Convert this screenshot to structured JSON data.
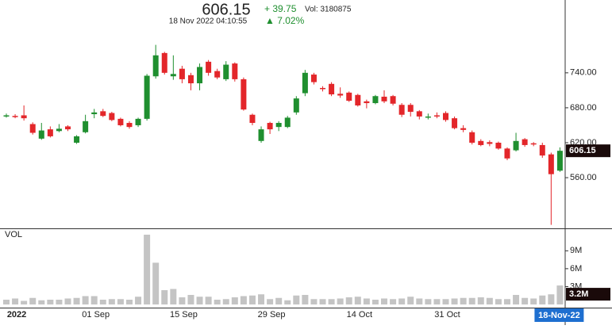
{
  "chart_data": {
    "type": "candlestick",
    "header": {
      "timestamp": "18 Nov 2022 04:10:55",
      "change": "+ 39.75",
      "volume_text": "Vol: 3180875",
      "change_percent": "▲ 7.02%"
    },
    "categories": [
      null,
      "2022",
      null,
      null,
      null,
      null,
      null,
      null,
      null,
      null,
      "01 Sep",
      null,
      null,
      null,
      null,
      null,
      null,
      null,
      null,
      null,
      "15 Sep",
      null,
      null,
      null,
      null,
      null,
      null,
      null,
      null,
      null,
      "29 Sep",
      null,
      null,
      null,
      null,
      null,
      null,
      null,
      null,
      null,
      "14 Oct",
      null,
      null,
      null,
      null,
      null,
      null,
      null,
      null,
      null,
      "31 Oct",
      null,
      null,
      null,
      null,
      null,
      null,
      null,
      null,
      null,
      null,
      null,
      null,
      "18-Nov-22"
    ],
    "open": [
      665,
      666,
      667,
      652,
      627,
      643,
      640,
      648,
      620,
      638,
      669,
      674,
      671,
      661,
      654,
      650,
      661,
      734,
      774,
      734,
      747,
      736,
      722,
      759,
      743,
      729,
      756,
      729,
      668,
      623,
      654,
      647,
      647,
      672,
      705,
      737,
      714,
      721,
      704,
      706,
      702,
      691,
      688,
      699,
      700,
      685,
      685,
      674,
      663,
      667,
      671,
      662,
      645,
      638,
      623,
      621,
      620,
      610,
      607,
      626,
      619,
      616,
      600,
      572
    ],
    "high": [
      670,
      669,
      684,
      655,
      654,
      648,
      652,
      650,
      633,
      668,
      678,
      678,
      673,
      663,
      657,
      663,
      738,
      788,
      776,
      770,
      752,
      740,
      756,
      762,
      747,
      760,
      758,
      732,
      670,
      648,
      656,
      657,
      666,
      700,
      745,
      740,
      717,
      724,
      715,
      708,
      704,
      694,
      702,
      710,
      702,
      688,
      688,
      676,
      670,
      672,
      674,
      665,
      650,
      641,
      626,
      624,
      622,
      612,
      637,
      628,
      621,
      620,
      603,
      612
    ],
    "low": [
      663,
      662,
      658,
      634,
      625,
      629,
      638,
      640,
      618,
      636,
      662,
      664,
      657,
      648,
      644,
      647,
      658,
      730,
      737,
      728,
      722,
      710,
      710,
      735,
      729,
      726,
      725,
      675,
      650,
      620,
      635,
      640,
      645,
      668,
      700,
      720,
      708,
      700,
      697,
      690,
      682,
      679,
      686,
      688,
      684,
      664,
      665,
      660,
      660,
      662,
      656,
      643,
      638,
      617,
      614,
      614,
      608,
      590,
      605,
      613,
      614,
      594,
      479,
      570
    ],
    "close": [
      667,
      664,
      662,
      637,
      641,
      631,
      644,
      643,
      631,
      657,
      672,
      666,
      659,
      650,
      647,
      661,
      735,
      770,
      740,
      738,
      729,
      722,
      750,
      740,
      732,
      754,
      729,
      677,
      654,
      643,
      643,
      654,
      663,
      696,
      740,
      724,
      712,
      703,
      701,
      692,
      684,
      688,
      700,
      691,
      687,
      668,
      673,
      665,
      665,
      665,
      659,
      645,
      642,
      620,
      616,
      618,
      610,
      593,
      623,
      616,
      617,
      598,
      566,
      606.15
    ],
    "up_color": "#1f8f2f",
    "down_color": "#e3262a",
    "ylim": [
      473,
      865
    ],
    "yticks": [
      {
        "value": 560,
        "label": "560.00"
      },
      {
        "value": 620,
        "label": "620.00"
      },
      {
        "value": 680,
        "label": "680.00"
      },
      {
        "value": 740,
        "label": "740.00"
      }
    ],
    "volume": {
      "name": "VOL",
      "color": "#c4c4c4",
      "values": [
        800000,
        1000000,
        600000,
        1100000,
        700000,
        800000,
        800000,
        1000000,
        1100000,
        1400000,
        1400000,
        800000,
        900000,
        900000,
        800000,
        1300000,
        11700000,
        7000000,
        2400000,
        2600000,
        1200000,
        1600000,
        1300000,
        1300000,
        800000,
        900000,
        1200000,
        1400000,
        1500000,
        1700000,
        900000,
        1100000,
        700000,
        1500000,
        1600000,
        900000,
        900000,
        900000,
        1000000,
        1200000,
        1300000,
        1000000,
        800000,
        1000000,
        900000,
        1000000,
        1300000,
        1000000,
        900000,
        900000,
        900000,
        1000000,
        1100000,
        1100000,
        1200000,
        1100000,
        900000,
        900000,
        1600000,
        1100000,
        1000000,
        1500000,
        1700000,
        3180875
      ],
      "value_labels": [
        null,
        null,
        null,
        null,
        null,
        null,
        null,
        null,
        null,
        null,
        null,
        null,
        null,
        null,
        null,
        null,
        null,
        null,
        null,
        null,
        null,
        null,
        null,
        null,
        null,
        null,
        null,
        null,
        null,
        null,
        null,
        null,
        null,
        null,
        null,
        null,
        null,
        null,
        null,
        null,
        null,
        null,
        null,
        null,
        null,
        null,
        null,
        null,
        null,
        null,
        null,
        null,
        null,
        null,
        null,
        null,
        null,
        null,
        null,
        null,
        null,
        null,
        null,
        "3.2M"
      ]
    },
    "y2lim": [
      0,
      12500000
    ],
    "y2ticks": [
      {
        "value": 3000000,
        "label": "3M"
      },
      {
        "value": 6000000,
        "label": "6M"
      },
      {
        "value": 9000000,
        "label": "9M"
      }
    ]
  }
}
